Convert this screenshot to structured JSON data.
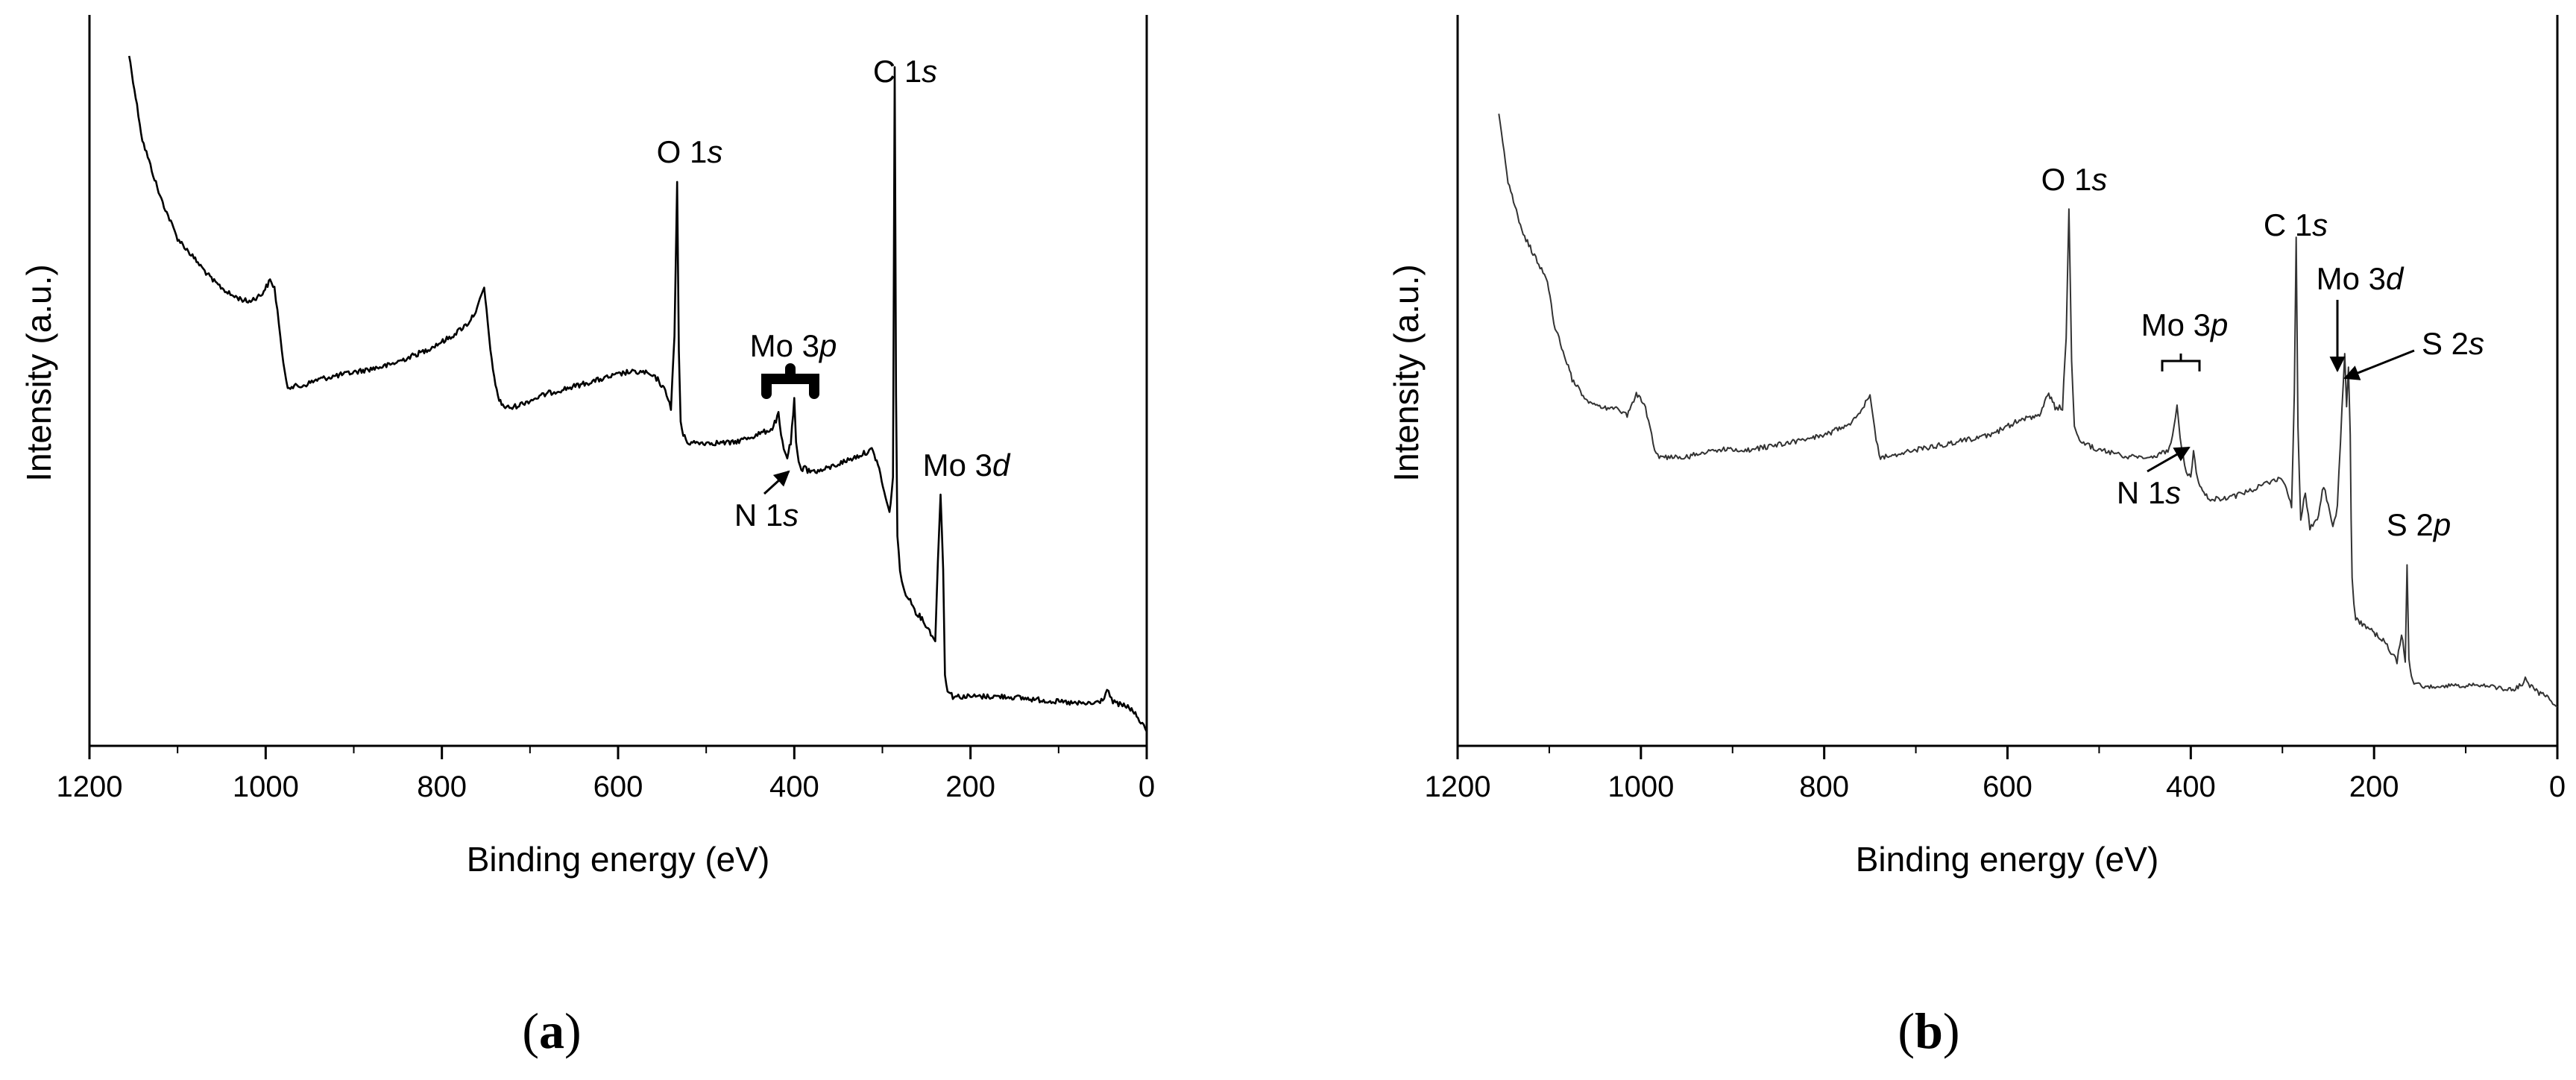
{
  "chart_data": [
    {
      "type": "line",
      "panel_label_parts": [
        "(",
        "a",
        ")"
      ],
      "xlabel": "Binding energy (eV)",
      "ylabel": "Intensity (a.u.)",
      "xlim": [
        1200,
        0
      ],
      "x_reversed": true,
      "x_ticks": [
        1200,
        1000,
        800,
        600,
        400,
        200,
        0
      ],
      "y_tick_labels": false,
      "grid": false,
      "line_color": "#000000",
      "series": [
        {
          "x": [
            1155,
            1140,
            1120,
            1100,
            1080,
            1060,
            1040,
            1020,
            1005,
            995,
            990,
            985,
            980,
            975,
            960,
            940,
            900,
            860,
            820,
            790,
            770,
            760,
            752,
            748,
            742,
            735,
            728,
            720,
            700,
            680,
            650,
            620,
            590,
            570,
            555,
            545,
            540,
            536,
            533,
            531,
            529,
            526,
            520,
            500,
            470,
            445,
            425,
            418,
            415,
            412,
            408,
            404,
            400,
            398,
            395,
            392,
            388,
            385,
            370,
            350,
            330,
            312,
            305,
            298,
            292,
            288,
            286,
            284.5,
            283,
            280,
            278,
            275,
            270,
            262,
            255,
            245,
            240,
            237,
            234,
            231,
            229,
            226,
            220,
            200,
            160,
            120,
            80,
            60,
            50,
            45,
            40,
            35,
            20,
            10,
            5,
            0
          ],
          "y": [
            0.98,
            0.86,
            0.78,
            0.72,
            0.69,
            0.66,
            0.64,
            0.63,
            0.64,
            0.66,
            0.65,
            0.6,
            0.54,
            0.51,
            0.51,
            0.52,
            0.53,
            0.54,
            0.56,
            0.58,
            0.6,
            0.62,
            0.65,
            0.6,
            0.53,
            0.49,
            0.48,
            0.48,
            0.49,
            0.5,
            0.51,
            0.52,
            0.53,
            0.53,
            0.52,
            0.5,
            0.48,
            0.58,
            0.8,
            0.56,
            0.46,
            0.44,
            0.43,
            0.43,
            0.43,
            0.44,
            0.45,
            0.47,
            0.44,
            0.42,
            0.41,
            0.43,
            0.49,
            0.43,
            0.4,
            0.39,
            0.4,
            0.39,
            0.39,
            0.4,
            0.41,
            0.42,
            0.4,
            0.36,
            0.33,
            0.38,
            0.96,
            0.5,
            0.3,
            0.25,
            0.23,
            0.22,
            0.21,
            0.19,
            0.18,
            0.16,
            0.15,
            0.26,
            0.36,
            0.25,
            0.1,
            0.08,
            0.07,
            0.07,
            0.07,
            0.065,
            0.06,
            0.06,
            0.065,
            0.08,
            0.065,
            0.06,
            0.055,
            0.04,
            0.03,
            0.02
          ]
        }
      ],
      "annotations": [
        {
          "label": "O 1",
          "orbital": "s",
          "peak_x": 533
        },
        {
          "label": "C 1",
          "orbital": "s",
          "peak_x": 285
        },
        {
          "label": "Mo 3",
          "orbital": "p",
          "peak_x": 405
        },
        {
          "label": "N 1",
          "orbital": "s",
          "peak_x": 398
        },
        {
          "label": "Mo 3",
          "orbital": "d",
          "peak_x": 231
        }
      ]
    },
    {
      "type": "line",
      "panel_label_parts": [
        "(",
        "b",
        ")"
      ],
      "xlabel": "Binding energy (eV)",
      "ylabel": "Intensity (a.u.)",
      "xlim": [
        1200,
        0
      ],
      "x_reversed": true,
      "x_ticks": [
        1200,
        1000,
        800,
        600,
        400,
        200,
        0
      ],
      "y_tick_labels": false,
      "grid": false,
      "line_color": "#333333",
      "series": [
        {
          "x": [
            1155,
            1145,
            1130,
            1110,
            1102,
            1095,
            1085,
            1075,
            1060,
            1045,
            1030,
            1015,
            1005,
            995,
            990,
            985,
            980,
            970,
            950,
            920,
            880,
            840,
            800,
            770,
            758,
            750,
            745,
            740,
            730,
            700,
            660,
            620,
            590,
            565,
            555,
            548,
            540,
            536,
            533,
            530,
            527,
            520,
            500,
            470,
            440,
            425,
            420,
            415,
            410,
            405,
            400,
            397,
            394,
            390,
            380,
            360,
            340,
            320,
            300,
            290,
            287,
            285,
            283,
            280,
            275,
            270,
            262,
            255,
            250,
            245,
            240,
            235,
            232,
            230,
            228,
            226,
            225,
            224,
            222,
            220,
            210,
            200,
            190,
            180,
            175,
            170,
            166,
            164,
            162,
            158,
            150,
            120,
            80,
            50,
            40,
            35,
            30,
            20,
            10,
            5,
            0
          ],
          "y": [
            0.9,
            0.8,
            0.73,
            0.68,
            0.66,
            0.6,
            0.56,
            0.52,
            0.49,
            0.48,
            0.48,
            0.47,
            0.5,
            0.48,
            0.45,
            0.42,
            0.41,
            0.41,
            0.41,
            0.42,
            0.42,
            0.43,
            0.44,
            0.46,
            0.48,
            0.5,
            0.45,
            0.41,
            0.41,
            0.42,
            0.43,
            0.44,
            0.46,
            0.47,
            0.5,
            0.48,
            0.48,
            0.58,
            0.76,
            0.55,
            0.45,
            0.43,
            0.42,
            0.41,
            0.41,
            0.42,
            0.44,
            0.48,
            0.42,
            0.39,
            0.38,
            0.42,
            0.39,
            0.37,
            0.35,
            0.35,
            0.36,
            0.37,
            0.38,
            0.34,
            0.5,
            0.72,
            0.45,
            0.32,
            0.36,
            0.31,
            0.32,
            0.37,
            0.34,
            0.31,
            0.34,
            0.48,
            0.56,
            0.48,
            0.54,
            0.44,
            0.32,
            0.24,
            0.2,
            0.18,
            0.17,
            0.16,
            0.15,
            0.13,
            0.12,
            0.16,
            0.12,
            0.26,
            0.12,
            0.09,
            0.085,
            0.085,
            0.085,
            0.08,
            0.085,
            0.095,
            0.085,
            0.075,
            0.07,
            0.06,
            0.055
          ]
        }
      ],
      "annotations": [
        {
          "label": "O 1",
          "orbital": "s",
          "peak_x": 533
        },
        {
          "label": "C 1",
          "orbital": "s",
          "peak_x": 285
        },
        {
          "label": "Mo 3",
          "orbital": "p",
          "peak_x": 405
        },
        {
          "label": "Mo 3",
          "orbital": "d",
          "peak_x": 231
        },
        {
          "label": "S 2",
          "orbital": "s",
          "peak_x": 228
        },
        {
          "label": "N 1",
          "orbital": "s",
          "peak_x": 400
        },
        {
          "label": "S 2",
          "orbital": "p",
          "peak_x": 164
        }
      ]
    }
  ]
}
